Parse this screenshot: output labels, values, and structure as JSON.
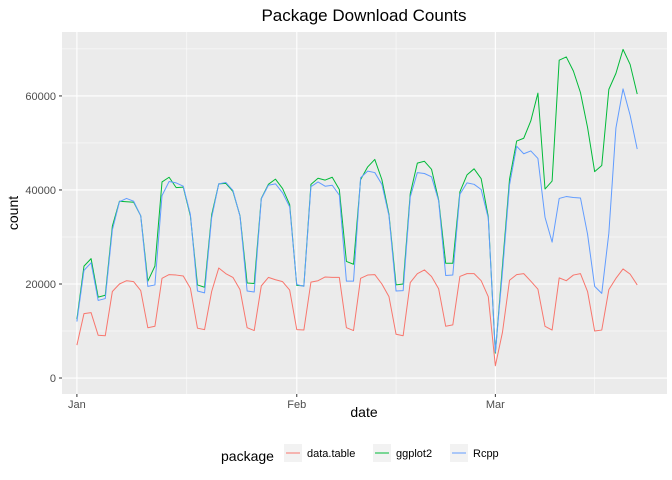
{
  "chart_data": {
    "type": "line",
    "title": "Package Download Counts",
    "xlabel": "date",
    "ylabel": "count",
    "x_ticks": [
      {
        "label": "Jan",
        "day": 0
      },
      {
        "label": "Feb",
        "day": 31
      },
      {
        "label": "Mar",
        "day": 59
      }
    ],
    "y_ticks": [
      0,
      20000,
      40000,
      60000
    ],
    "xlim": [
      -2.1,
      83.2
    ],
    "ylim": [
      -3400,
      73600
    ],
    "legend_title": "package",
    "legend_position": "bottom",
    "background": "#ebebeb",
    "grid": true,
    "x_start_date": "Jan 1",
    "series": [
      {
        "name": "data.table",
        "color": "#F8766D",
        "values": [
          7000,
          13700,
          13900,
          9100,
          9000,
          18400,
          20000,
          20700,
          20500,
          18600,
          10700,
          11000,
          21200,
          22000,
          21900,
          21700,
          19100,
          10600,
          10300,
          18400,
          23400,
          22200,
          21400,
          18800,
          10700,
          10100,
          19600,
          21400,
          20900,
          20500,
          18700,
          10300,
          10200,
          20400,
          20700,
          21500,
          21400,
          21400,
          10700,
          10100,
          21200,
          21900,
          22000,
          20000,
          17300,
          9300,
          9000,
          20300,
          22200,
          23000,
          21600,
          19000,
          11000,
          11300,
          21600,
          22200,
          22200,
          20700,
          17300,
          2600,
          9700,
          20800,
          22000,
          22200,
          20600,
          18900,
          11000,
          10200,
          21300,
          20700,
          21900,
          22200,
          18400,
          10000,
          10200,
          18800,
          21200,
          23200,
          22100,
          19800
        ]
      },
      {
        "name": "ggplot2",
        "color": "#00BA38",
        "values": [
          12500,
          23800,
          25400,
          17200,
          17600,
          32300,
          37600,
          37500,
          37400,
          34500,
          20600,
          23800,
          41700,
          42700,
          40500,
          40600,
          34500,
          19800,
          19300,
          34700,
          41300,
          41400,
          39700,
          34500,
          20200,
          20100,
          38200,
          41200,
          42300,
          40300,
          36900,
          19700,
          19600,
          41200,
          42500,
          42100,
          42700,
          40100,
          24800,
          24200,
          42200,
          44900,
          46500,
          42200,
          34800,
          19800,
          20000,
          39200,
          45700,
          46100,
          44400,
          37900,
          24400,
          24400,
          39600,
          43200,
          44500,
          42400,
          34300,
          5300,
          23800,
          42300,
          50400,
          51000,
          54700,
          60600,
          40200,
          41900,
          67600,
          68300,
          65300,
          60700,
          53300,
          43900,
          45200,
          61400,
          64800,
          69900,
          66700,
          60400
        ]
      },
      {
        "name": "Rcpp",
        "color": "#619CFF",
        "values": [
          12000,
          22900,
          24500,
          16500,
          16900,
          31500,
          37500,
          38200,
          37600,
          34500,
          19500,
          19800,
          38800,
          41800,
          41500,
          40800,
          34800,
          18500,
          18100,
          34100,
          41300,
          41600,
          39900,
          34400,
          18500,
          18300,
          38100,
          41000,
          41300,
          39400,
          36400,
          19900,
          19500,
          40700,
          41700,
          40800,
          41000,
          38900,
          20600,
          20600,
          42600,
          44000,
          43700,
          41200,
          34500,
          18500,
          18600,
          38500,
          43700,
          43500,
          42800,
          37700,
          21800,
          21900,
          39100,
          41500,
          41200,
          40100,
          34000,
          5500,
          22500,
          41100,
          49300,
          47700,
          48300,
          46700,
          34200,
          28900,
          38200,
          38600,
          38400,
          38300,
          30600,
          19500,
          18000,
          30800,
          53200,
          61500,
          55900,
          48700
        ]
      }
    ]
  }
}
